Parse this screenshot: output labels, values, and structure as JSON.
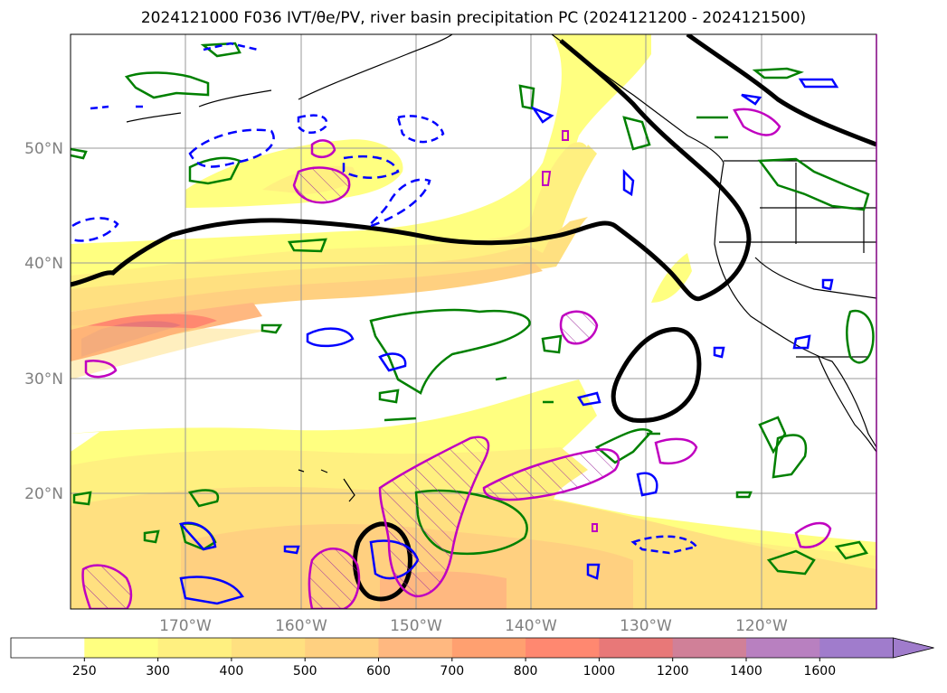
{
  "title": "2024121000 F036 IVT/θe/PV, river basin precipitation PC (2024121200 - 2024121500)",
  "map": {
    "lat_labels": [
      "50°N",
      "40°N",
      "30°N",
      "20°N"
    ],
    "lon_labels": [
      "170°W",
      "160°W",
      "150°W",
      "140°W",
      "130°W",
      "120°W"
    ],
    "background": "#ffffff",
    "gridline_color": "#999999",
    "coastline_color": "#000000"
  },
  "legend": {
    "colorbar": {
      "ticks": [
        "250",
        "300",
        "400",
        "500",
        "600",
        "700",
        "800",
        "1000",
        "1200",
        "1400",
        "1600"
      ],
      "colors": [
        "#ffffff",
        "#ffff80",
        "#fff080",
        "#ffe080",
        "#ffd080",
        "#ffb880",
        "#ffa070",
        "#ff8870",
        "#e87878",
        "#d08098",
        "#b880c0",
        "#a07ccc"
      ],
      "extend": "max"
    }
  },
  "contour_colors": {
    "thick_black": "#000000",
    "green": "#008000",
    "blue": "#0000ff",
    "magenta": "#c000c0"
  }
}
